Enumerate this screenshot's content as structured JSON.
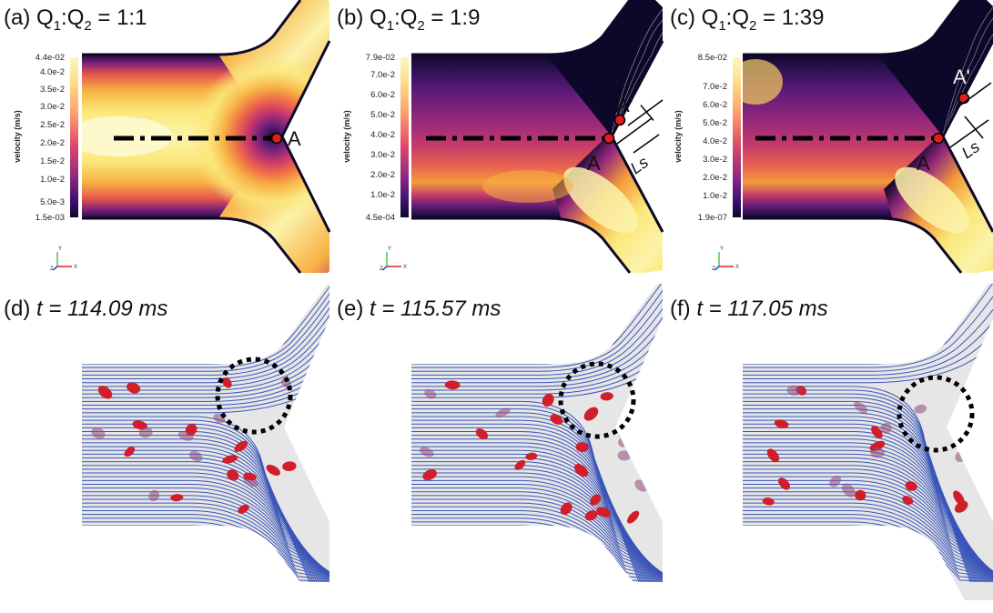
{
  "panels_top": [
    {
      "label": "(a)",
      "ratio_prefix": "Q",
      "ratio_sub1": "1",
      "ratio_colon": ":Q",
      "ratio_sub2": "2",
      "ratio_value": " = 1:1",
      "colorbar_title": "velocity (m/s)",
      "colorbar_ticks": [
        "4.4e-02",
        "4.0e-2",
        "3.5e-2",
        "3.0e-2",
        "2.5e-2",
        "2.0e-2",
        "1.5e-2",
        "1.0e-2",
        "5.0e-3",
        "1.5e-03"
      ],
      "point_labels": [
        "A"
      ]
    },
    {
      "label": "(b)",
      "ratio_prefix": "Q",
      "ratio_sub1": "1",
      "ratio_colon": ":Q",
      "ratio_sub2": "2",
      "ratio_value": " = 1:9",
      "colorbar_title": "velocity (m/s)",
      "colorbar_ticks": [
        "7.9e-02",
        "7.0e-2",
        "6.0e-2",
        "5.0e-2",
        "4.0e-2",
        "3.0e-2",
        "2.0e-2",
        "1.0e-2",
        "4.5e-04"
      ],
      "point_labels": [
        "A",
        "A'"
      ],
      "ls_label": "Ls"
    },
    {
      "label": "(c)",
      "ratio_prefix": "Q",
      "ratio_sub1": "1",
      "ratio_colon": ":Q",
      "ratio_sub2": "2",
      "ratio_value": " = 1:39",
      "colorbar_title": "velocity (m/s)",
      "colorbar_ticks": [
        "8.5e-02",
        "7.0e-2",
        "6.0e-2",
        "5.0e-2",
        "4.0e-2",
        "3.0e-2",
        "2.0e-2",
        "1.0e-2",
        "1.9e-07"
      ],
      "point_labels": [
        "A",
        "A'"
      ],
      "ls_label": "Ls"
    }
  ],
  "panels_bottom": [
    {
      "label": "(d)",
      "time_prefix": "t = ",
      "time_value": "114.09 ms"
    },
    {
      "label": "(e)",
      "time_prefix": "t = ",
      "time_value": "115.57 ms"
    },
    {
      "label": "(f)",
      "time_prefix": "t = ",
      "time_value": "117.05 ms"
    }
  ],
  "axes_triad": {
    "y": "Y",
    "z": "Z",
    "x": "X"
  },
  "colors": {
    "streamline": "#3a55b8",
    "rbc": "#d01e2a",
    "rbc_shadow": "#8f4a7a",
    "marker": "#e01e1e",
    "channel_bg": "#e6e6e6",
    "plasma_dark": "#0d0829",
    "plasma_mid": "#b8337a",
    "plasma_hot": "#f2a23a",
    "plasma_light": "#fbf7b0"
  }
}
